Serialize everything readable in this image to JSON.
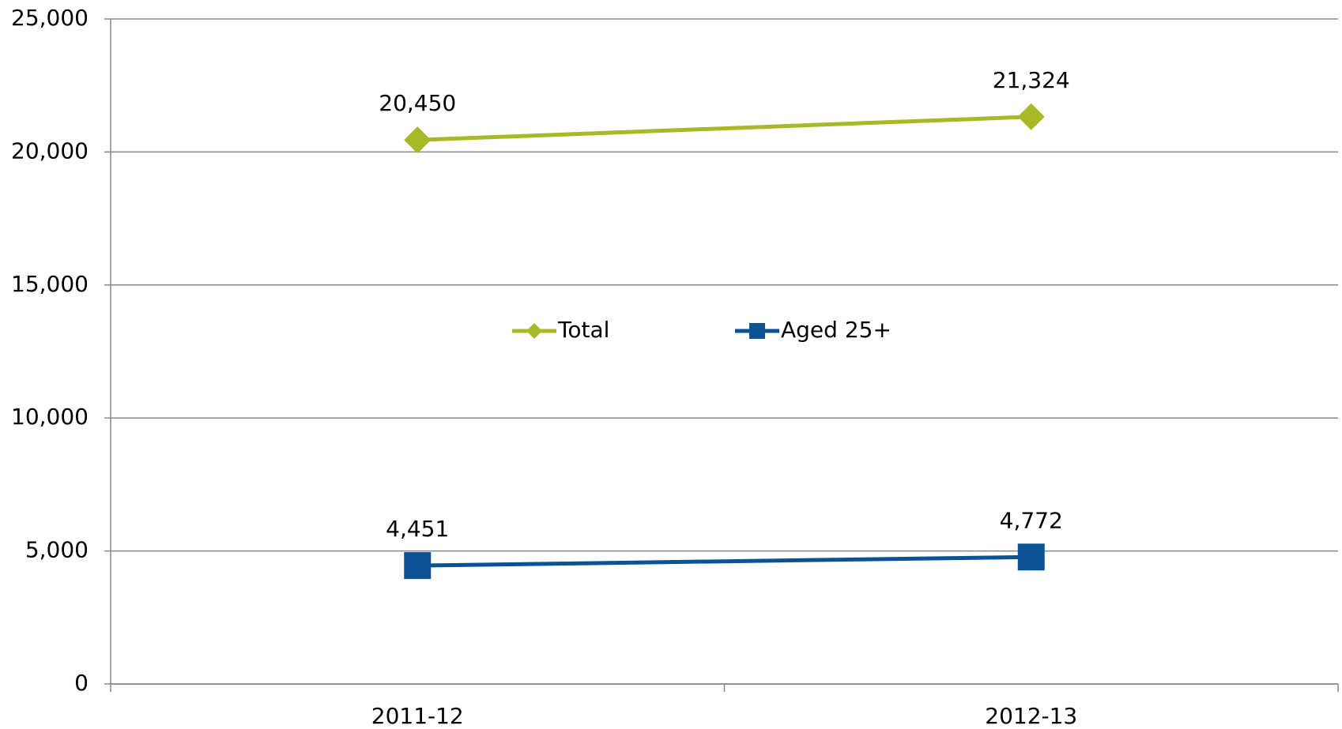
{
  "chart_data": {
    "type": "line",
    "categories": [
      "2011-12",
      "2012-13"
    ],
    "series": [
      {
        "name": "Total",
        "color": "#a8b826",
        "marker": "diamond",
        "values": [
          20450,
          21324
        ],
        "value_labels": [
          "20,450",
          "21,324"
        ]
      },
      {
        "name": "Aged 25+",
        "color": "#0b5394",
        "marker": "square",
        "values": [
          4451,
          4772
        ],
        "value_labels": [
          "4,451",
          "4,772"
        ]
      }
    ],
    "ylim": [
      0,
      25000
    ],
    "yticks": [
      0,
      {
        "value": 5000,
        "label": "5,000"
      },
      {
        "value": 10000,
        "label": "10,000"
      },
      {
        "value": 15000,
        "label": "15,000"
      },
      {
        "value": 20000,
        "label": "20,000"
      },
      {
        "value": 25000,
        "label": "25,000"
      }
    ],
    "grid": true,
    "legend": "center"
  }
}
